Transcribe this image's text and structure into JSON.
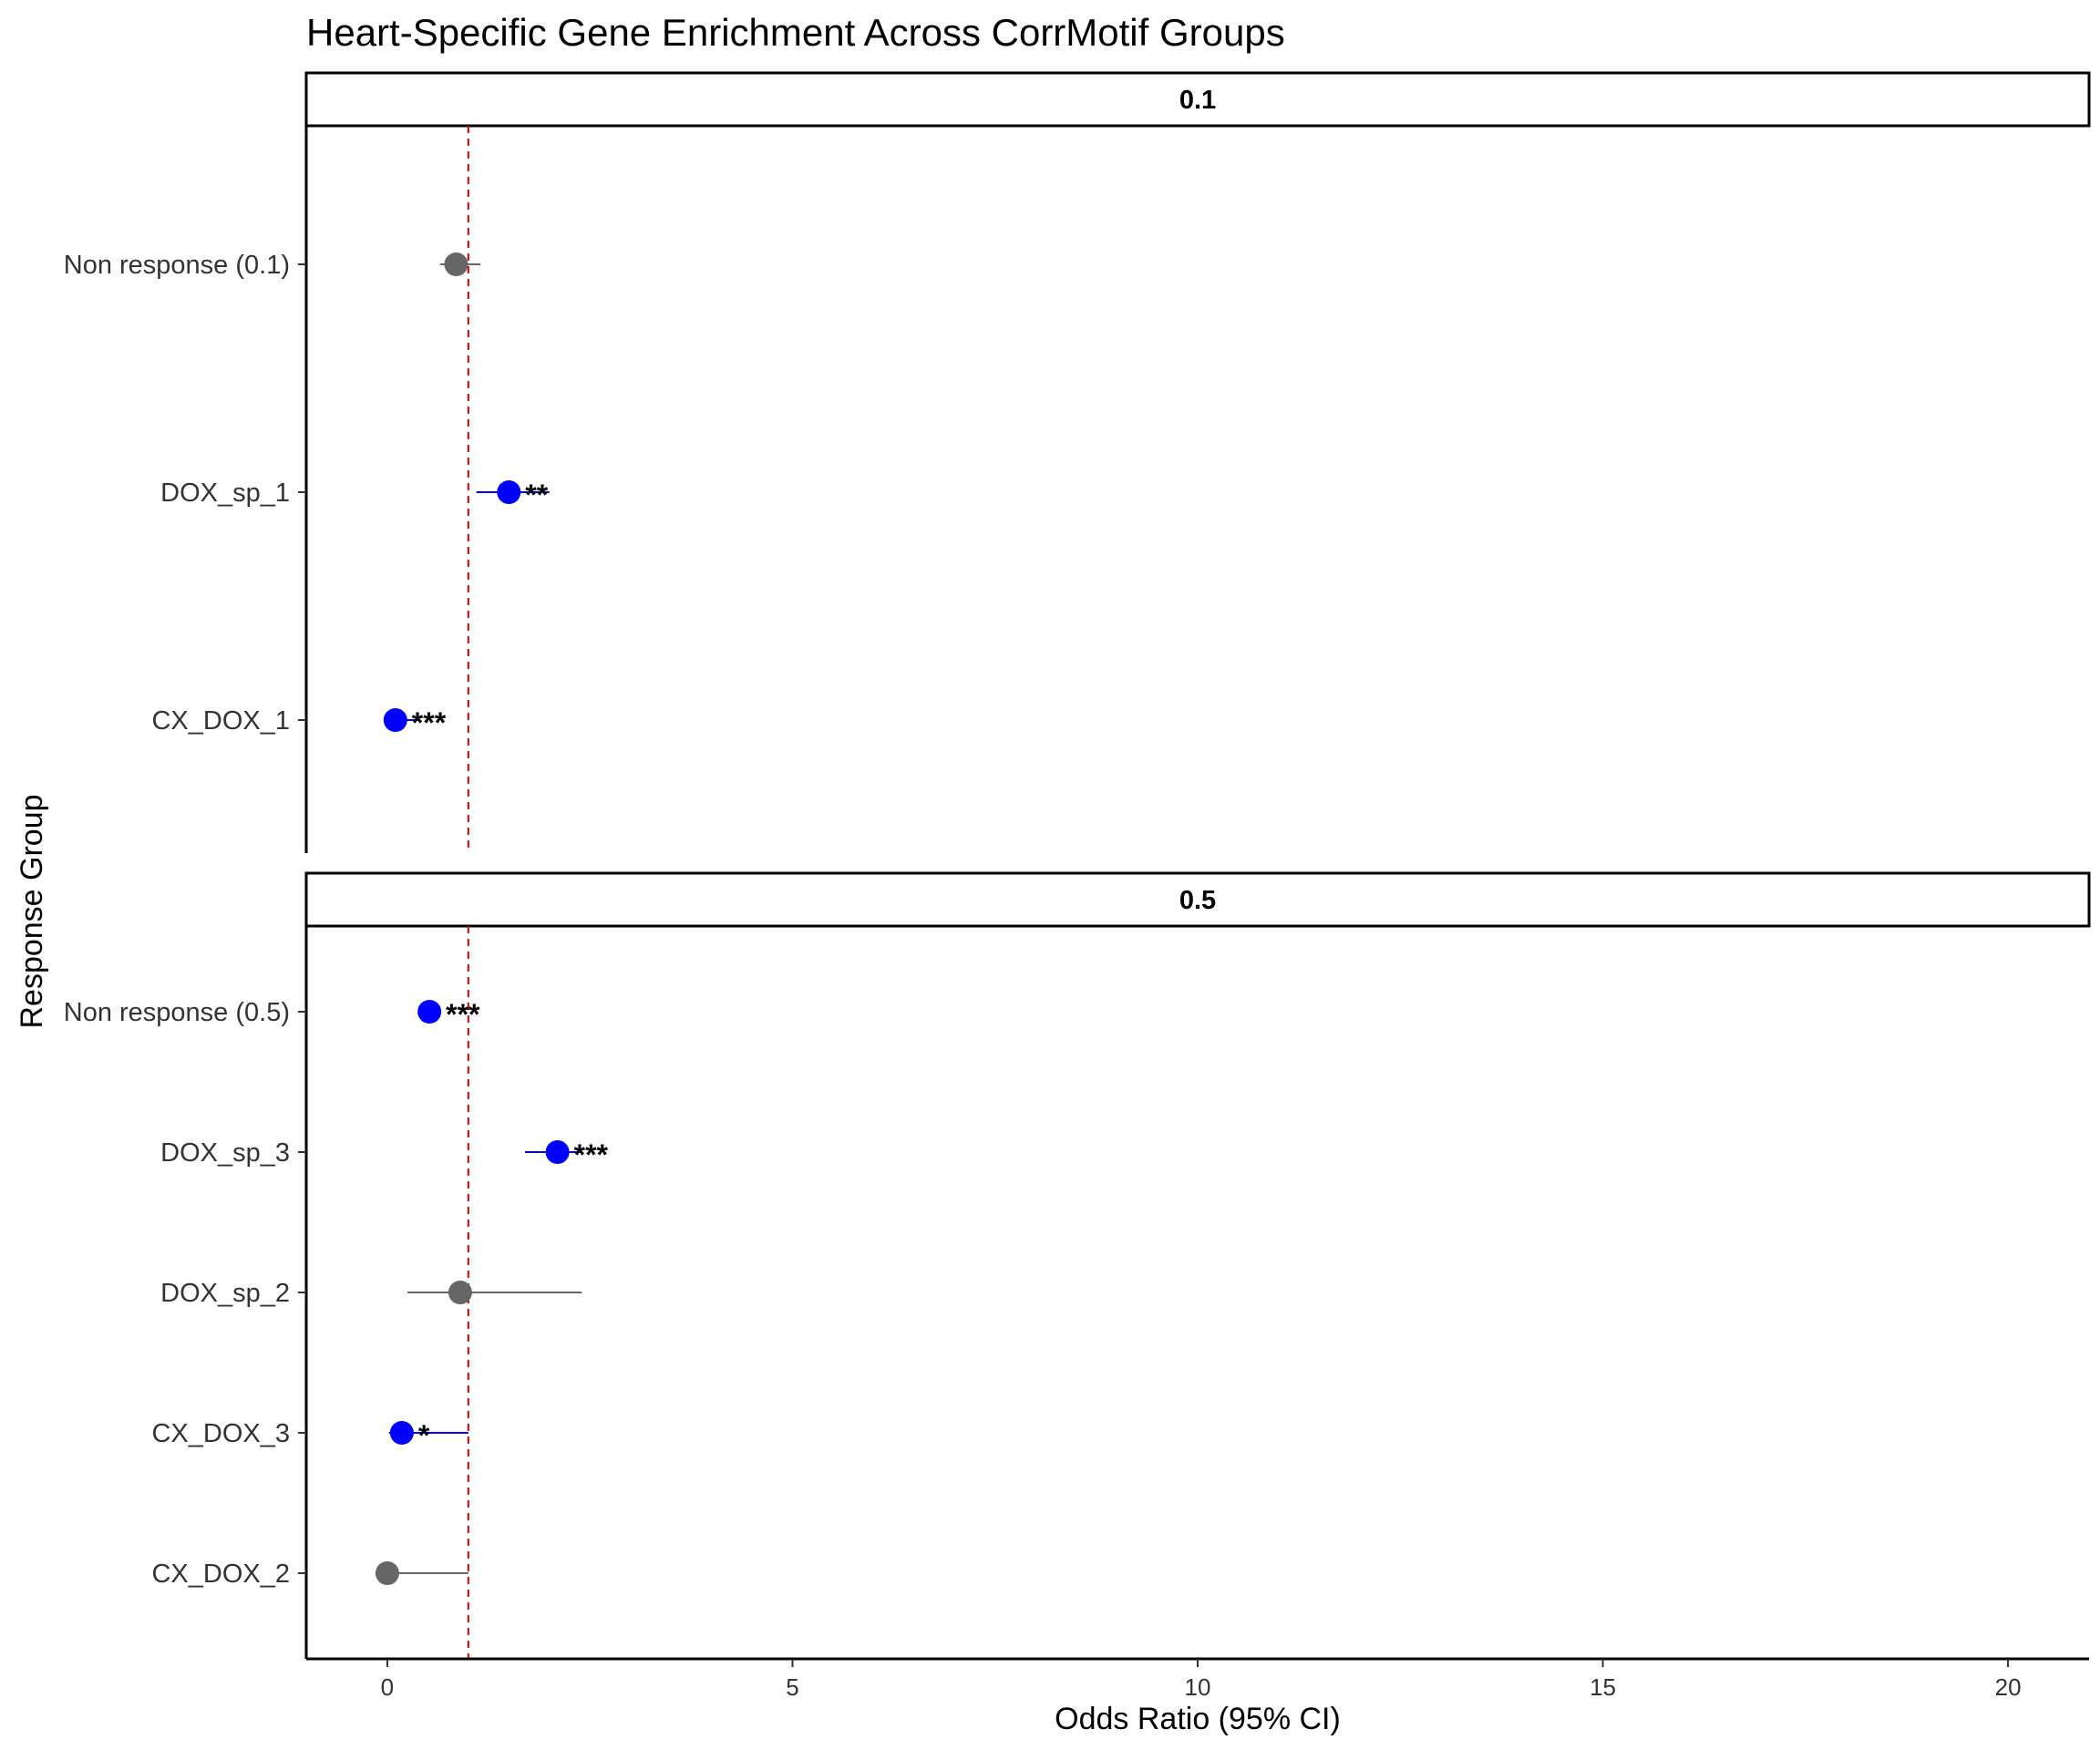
{
  "chart_data": {
    "type": "forest",
    "title": "Heart-Specific Gene Enrichment Across CorrMotif Groups",
    "xlabel": "Odds Ratio (95% CI)",
    "ylabel": "Response Group",
    "xlim": [
      -1,
      21
    ],
    "x_ticks": [
      0,
      5,
      10,
      15,
      20
    ],
    "reference_line": 1,
    "colors": {
      "significant": "#0000FF",
      "not_significant": "#666666",
      "reference": "#CC0000"
    },
    "facets": [
      {
        "label": "0.1",
        "rows": [
          {
            "group": "Non response (0.1)",
            "or": 0.85,
            "ci_low": 0.65,
            "ci_high": 1.15,
            "significant": false,
            "stars": ""
          },
          {
            "group": "DOX_sp_1",
            "or": 1.5,
            "ci_low": 1.1,
            "ci_high": 2.0,
            "significant": true,
            "stars": "**"
          },
          {
            "group": "CX_DOX_1",
            "or": 0.1,
            "ci_low": 0.02,
            "ci_high": 0.4,
            "significant": true,
            "stars": "***"
          }
        ]
      },
      {
        "label": "0.5",
        "rows": [
          {
            "group": "Non response (0.5)",
            "or": 0.52,
            "ci_low": 0.45,
            "ci_high": 0.6,
            "significant": true,
            "stars": "***"
          },
          {
            "group": "DOX_sp_3",
            "or": 2.1,
            "ci_low": 1.7,
            "ci_high": 2.4,
            "significant": true,
            "stars": "***"
          },
          {
            "group": "DOX_sp_2",
            "or": 0.9,
            "ci_low": 0.25,
            "ci_high": 2.4,
            "significant": false,
            "stars": ""
          },
          {
            "group": "CX_DOX_3",
            "or": 0.18,
            "ci_low": 0.02,
            "ci_high": 1.0,
            "significant": true,
            "stars": "*"
          },
          {
            "group": "CX_DOX_2",
            "or": 0.0,
            "ci_low": 0.0,
            "ci_high": 1.0,
            "significant": false,
            "stars": ""
          }
        ]
      }
    ]
  }
}
